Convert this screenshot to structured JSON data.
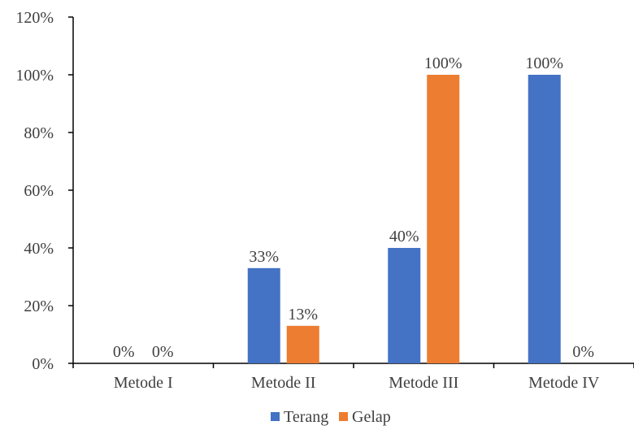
{
  "chart_data": {
    "type": "bar",
    "categories": [
      "Metode I",
      "Metode II",
      "Metode III",
      "Metode IV"
    ],
    "series": [
      {
        "name": "Terang",
        "values": [
          0,
          33,
          40,
          100
        ],
        "labels": [
          "0%",
          "33%",
          "40%",
          "100%"
        ],
        "color": "#4472C4"
      },
      {
        "name": "Gelap",
        "values": [
          0,
          13,
          100,
          0
        ],
        "labels": [
          "0%",
          "13%",
          "100%",
          "0%"
        ],
        "color": "#ED7D31"
      }
    ],
    "ylim": [
      0,
      120
    ],
    "yticks": [
      0,
      20,
      40,
      60,
      80,
      100,
      120
    ],
    "ytick_labels": [
      "0%",
      "20%",
      "40%",
      "60%",
      "80%",
      "100%",
      "120%"
    ],
    "grid": false,
    "legend_position": "bottom",
    "title": "",
    "xlabel": "",
    "ylabel": ""
  }
}
